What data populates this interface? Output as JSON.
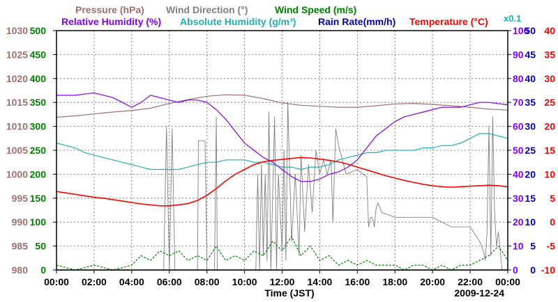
{
  "chart_data": {
    "type": "line",
    "date": "2009-12-24",
    "xlabel": "Time (JST)",
    "x_ticks": [
      "00:00",
      "02:00",
      "04:00",
      "06:00",
      "08:00",
      "10:00",
      "12:00",
      "14:00",
      "16:00",
      "18:00",
      "20:00",
      "22:00",
      "00:00"
    ],
    "x_range_hours": [
      0,
      24
    ],
    "legend": {
      "row1": [
        {
          "id": "pressure",
          "label": "Pressure (hPa)"
        },
        {
          "id": "wind_dir",
          "label": "Wind Direction (°)"
        },
        {
          "id": "wind_speed",
          "label": "Wind Speed (m/s)"
        }
      ],
      "row2": [
        {
          "id": "rh",
          "label": "Relative Humidity (%)"
        },
        {
          "id": "abs_hum",
          "label": "Absolute Humidity (g/m³)"
        },
        {
          "id": "rain",
          "label": "Rain Rate(mm/h)"
        },
        {
          "id": "temp",
          "label": "Temperature (°C)"
        },
        {
          "id": "x01",
          "label": "x0.1"
        }
      ]
    },
    "colors": {
      "pressure": "#a07070",
      "wind_dir": "#808080",
      "wind_speed": "#008000",
      "rh": "#8000ff",
      "abs_hum": "#20b0b0",
      "rain": "#0000c0",
      "temp": "#ff0000",
      "axis": "#000000",
      "grid": "#666666"
    },
    "axes": {
      "pressure": {
        "range": [
          980,
          1030
        ],
        "ticks": [
          "1030",
          "1025",
          "1020",
          "1015",
          "1010",
          "1005",
          "1000",
          "995",
          "990",
          "985",
          "980"
        ]
      },
      "wind_dir": {
        "range": [
          0,
          500
        ],
        "ticks": [
          "500",
          "450",
          "400",
          "350",
          "300",
          "250",
          "200",
          "150",
          "100",
          "50",
          "0"
        ]
      },
      "rh": {
        "range": [
          0,
          100
        ],
        "ticks": [
          "100",
          "90",
          "80",
          "70",
          "60",
          "50",
          "40",
          "30",
          "20",
          "10",
          "0"
        ]
      },
      "rain": {
        "range": [
          0,
          50
        ],
        "ticks": [
          "50",
          "45",
          "40",
          "35",
          "30",
          "25",
          "20",
          "15",
          "10",
          "5",
          "0"
        ]
      },
      "temp": {
        "range": [
          -10,
          40
        ],
        "ticks": [
          "40",
          "35",
          "30",
          "25",
          "20",
          "15",
          "10",
          "5",
          "0",
          "-5",
          "-10"
        ]
      }
    },
    "series": [
      {
        "name": "Pressure (hPa)",
        "axis": "pressure",
        "x": [
          0,
          1,
          2,
          3,
          4,
          5,
          6,
          7,
          8,
          9,
          10,
          11,
          12,
          13,
          14,
          15,
          16,
          17,
          18,
          19,
          20,
          21,
          22,
          23,
          24
        ],
        "values": [
          1011.9,
          1012.2,
          1012.6,
          1013.0,
          1013.3,
          1013.8,
          1014.8,
          1015.6,
          1016.3,
          1016.6,
          1016.5,
          1015.8,
          1014.9,
          1014.4,
          1014.2,
          1014.0,
          1014.0,
          1014.3,
          1014.7,
          1014.8,
          1014.6,
          1014.3,
          1014.0,
          1013.6,
          1013.4
        ]
      },
      {
        "name": "Wind Direction (°)",
        "axis": "wind_dir",
        "x": [
          0,
          4,
          5.7,
          5.85,
          6.0,
          6.15,
          6.3,
          6.5,
          7.5,
          7.55,
          7.9,
          8.0,
          8.4,
          8.5,
          8.55,
          8.7,
          10.6,
          10.7,
          10.8,
          10.9,
          11.0,
          11.1,
          11.2,
          11.3,
          11.4,
          11.6,
          11.7,
          11.8,
          12.0,
          12.1,
          12.2,
          12.3,
          12.5,
          12.7,
          12.9,
          13.0,
          13.2,
          13.4,
          13.6,
          13.8,
          14.0,
          14.2,
          14.4,
          14.6,
          14.7,
          14.85,
          15.0,
          15.2,
          15.4,
          16.0,
          16.3,
          16.5,
          16.6,
          16.7,
          16.8,
          16.9,
          17.0,
          17.1,
          17.3,
          18.0,
          20.0,
          21.0,
          22.0,
          22.5,
          22.7,
          22.8,
          22.9,
          23.0,
          23.1,
          23.2,
          23.3,
          23.4,
          23.5,
          23.6,
          23.7,
          24
        ],
        "values": [
          0,
          0,
          0,
          300,
          0,
          295,
          0,
          0,
          0,
          270,
          270,
          0,
          0,
          320,
          0,
          0,
          0,
          200,
          0,
          220,
          30,
          200,
          20,
          330,
          0,
          320,
          0,
          200,
          40,
          250,
          20,
          350,
          60,
          200,
          30,
          240,
          80,
          220,
          120,
          250,
          200,
          230,
          200,
          230,
          100,
          295,
          260,
          230,
          200,
          210,
          200,
          195,
          90,
          110,
          110,
          90,
          130,
          140,
          120,
          110,
          110,
          90,
          90,
          60,
          40,
          20,
          80,
          300,
          30,
          320,
          120,
          50,
          80,
          40,
          0,
          0
        ]
      },
      {
        "name": "Wind Speed (m/s)",
        "axis": "wind_dir",
        "x": [
          0,
          1,
          2,
          3,
          4,
          4.5,
          5,
          5.5,
          6,
          6.5,
          7,
          7.5,
          8,
          8.5,
          9,
          9.5,
          10,
          10.5,
          11,
          11.5,
          12,
          12.5,
          13,
          13.5,
          14,
          14.5,
          15,
          15.5,
          16,
          16.5,
          17,
          17.5,
          18,
          18.5,
          19,
          19.5,
          20,
          20.5,
          21,
          21.5,
          22,
          22.5,
          23,
          23.5,
          24
        ],
        "values": [
          1,
          0,
          1,
          0,
          1,
          3,
          2,
          4,
          3,
          4,
          2,
          3,
          2,
          5,
          2,
          3,
          2,
          4,
          3,
          6,
          4,
          7,
          3,
          5,
          2,
          3,
          1,
          2,
          1,
          2,
          1,
          1,
          1,
          0,
          1,
          1,
          0,
          1,
          0,
          1,
          1,
          2,
          3,
          5,
          2
        ]
      },
      {
        "name": "Relative Humidity (%)",
        "axis": "rh",
        "x": [
          0,
          1,
          2,
          3,
          3.5,
          4,
          4.5,
          5,
          5.5,
          6,
          6.5,
          7,
          7.5,
          8,
          8.5,
          9,
          9.5,
          10,
          10.5,
          11,
          11.5,
          12,
          12.5,
          13,
          13.5,
          14,
          14.5,
          15,
          15.5,
          16,
          16.5,
          17,
          17.5,
          18,
          18.5,
          19,
          19.5,
          20,
          20.5,
          21,
          21.5,
          22,
          22.5,
          23,
          24
        ],
        "values": [
          73,
          73,
          74,
          72,
          70,
          68,
          70,
          73,
          72,
          71,
          70,
          71,
          71,
          70,
          67,
          63,
          58,
          53,
          50,
          47,
          45,
          42,
          39,
          37,
          37,
          38,
          40,
          41,
          43,
          46,
          51,
          56,
          59,
          62,
          64,
          65,
          66,
          67,
          68,
          68,
          68,
          69,
          70,
          70,
          69
        ]
      },
      {
        "name": "Absolute Humidity (g/m³)",
        "axis": "rh",
        "x": [
          0,
          0.5,
          1,
          1.5,
          2,
          2.5,
          3,
          3.5,
          4,
          4.5,
          5,
          5.5,
          6,
          6.5,
          7,
          7.5,
          8,
          8.5,
          9,
          9.5,
          10,
          10.5,
          11,
          11.5,
          12,
          12.5,
          13,
          13.5,
          14,
          14.5,
          15,
          15.5,
          16,
          16.5,
          17,
          17.5,
          18,
          18.5,
          19,
          19.5,
          20,
          20.5,
          21,
          21.5,
          22,
          22.5,
          23,
          23.5,
          24
        ],
        "values": [
          53,
          52,
          51,
          49,
          48,
          47,
          46,
          45,
          44,
          43,
          42,
          42,
          42,
          42,
          43,
          44,
          45,
          45,
          46,
          46,
          46,
          45,
          45,
          44,
          43,
          43,
          42,
          43,
          43,
          44,
          46,
          47,
          48,
          49,
          49,
          50,
          50,
          50,
          50,
          51,
          51,
          52,
          52,
          53,
          55,
          57,
          57,
          56,
          55
        ]
      },
      {
        "name": "Rain Rate(mm/h)",
        "axis": "rain",
        "x": [
          0,
          24
        ],
        "values": [
          0,
          0
        ]
      },
      {
        "name": "Temperature (°C)",
        "axis": "temp",
        "x": [
          0,
          0.5,
          1,
          1.5,
          2,
          2.5,
          3,
          3.5,
          4,
          4.5,
          5,
          5.5,
          6,
          6.5,
          7,
          7.5,
          8,
          8.5,
          9,
          9.5,
          10,
          10.5,
          11,
          11.5,
          12,
          12.5,
          13,
          13.5,
          14,
          14.5,
          15,
          15.5,
          16,
          16.5,
          17,
          17.5,
          18,
          18.5,
          19,
          19.5,
          20,
          20.5,
          21,
          21.5,
          22,
          22.5,
          23,
          23.5,
          24
        ],
        "values": [
          6.4,
          6.1,
          5.8,
          5.5,
          5.2,
          5.0,
          4.7,
          4.4,
          4.1,
          3.8,
          3.6,
          3.4,
          3.4,
          3.6,
          3.9,
          4.5,
          5.6,
          7.0,
          8.6,
          10.0,
          11.0,
          12.0,
          12.6,
          12.9,
          13.1,
          13.3,
          13.5,
          13.4,
          13.2,
          12.9,
          12.6,
          12.1,
          11.5,
          10.9,
          10.3,
          9.7,
          9.2,
          8.7,
          8.3,
          7.9,
          7.6,
          7.4,
          7.3,
          7.4,
          7.5,
          7.6,
          7.7,
          7.6,
          7.4
        ]
      }
    ]
  }
}
